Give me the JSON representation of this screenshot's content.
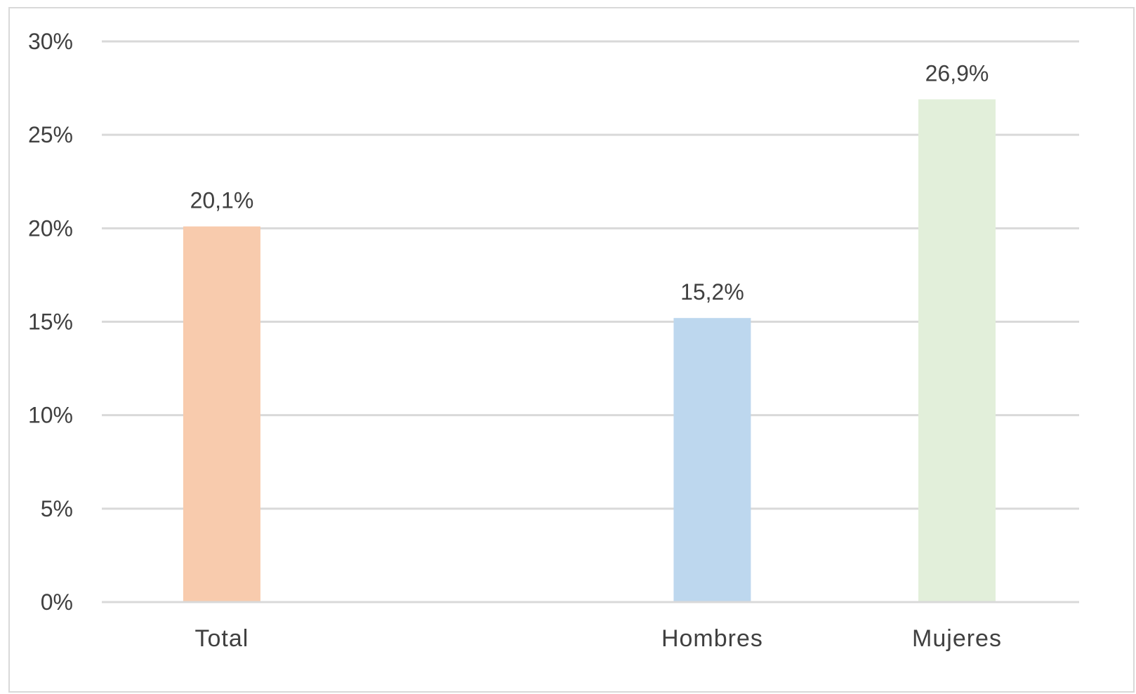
{
  "chart_data": {
    "type": "bar",
    "categories": [
      "Total",
      "Hombres",
      "Mujeres"
    ],
    "values": [
      20.1,
      15.2,
      26.9
    ],
    "data_labels": [
      "20,1%",
      "15,2%",
      "26,9%"
    ],
    "colors": [
      "#f8cbad",
      "#bdd7ee",
      "#e2efda"
    ],
    "ylim": [
      0,
      30
    ],
    "yticks": [
      {
        "value": 0,
        "label": "0%"
      },
      {
        "value": 5,
        "label": "5%"
      },
      {
        "value": 10,
        "label": "10%"
      },
      {
        "value": 15,
        "label": "15%"
      },
      {
        "value": 20,
        "label": "20%"
      },
      {
        "value": 25,
        "label": "25%"
      },
      {
        "value": 30,
        "label": "30%"
      }
    ],
    "grid": true,
    "legend": "none"
  }
}
